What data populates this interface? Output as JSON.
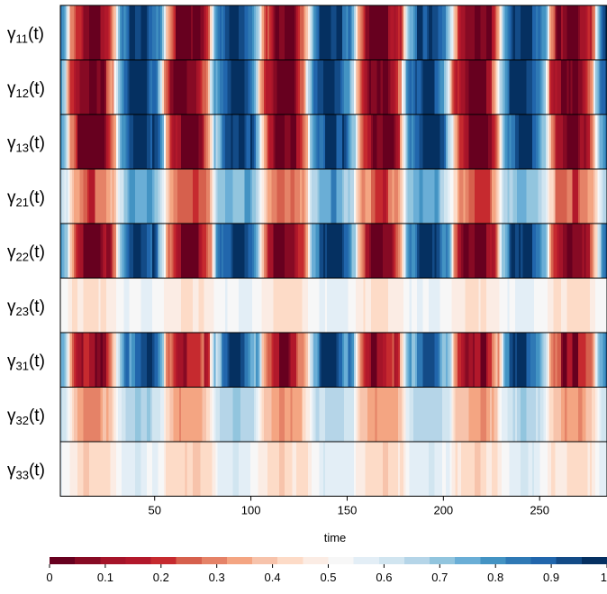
{
  "chart_data": {
    "type": "heatmap",
    "xlabel": "time",
    "xlim": [
      1,
      285
    ],
    "x_ticks": [
      "50",
      "100",
      "150",
      "200",
      "250"
    ],
    "rows": [
      {
        "symbol": "γ",
        "subscript": "11",
        "suffix": "(t)",
        "amplitude": 1.0,
        "phase": 0.0,
        "noise": 0.09
      },
      {
        "symbol": "γ",
        "subscript": "12",
        "suffix": "(t)",
        "amplitude": 1.0,
        "phase": 0.15,
        "noise": 0.07
      },
      {
        "symbol": "γ",
        "subscript": "13",
        "suffix": "(t)",
        "amplitude": 1.0,
        "phase": 0.0,
        "noise": 0.09
      },
      {
        "symbol": "γ",
        "subscript": "21",
        "suffix": "(t)",
        "amplitude": 0.55,
        "phase": 0.0,
        "noise": 0.06
      },
      {
        "symbol": "γ",
        "subscript": "22",
        "suffix": "(t)",
        "amplitude": 1.0,
        "phase": 0.0,
        "noise": 0.08
      },
      {
        "symbol": "γ",
        "subscript": "23",
        "suffix": "(t)",
        "amplitude": 0.12,
        "phase": 0.0,
        "noise": 0.02
      },
      {
        "symbol": "γ",
        "subscript": "31",
        "suffix": "(t)",
        "amplitude": 0.85,
        "phase": 0.0,
        "noise": 0.11
      },
      {
        "symbol": "γ",
        "subscript": "32",
        "suffix": "(t)",
        "amplitude": 0.35,
        "phase": 0.0,
        "noise": 0.03
      },
      {
        "symbol": "γ",
        "subscript": "33",
        "suffix": "(t)",
        "amplitude": 0.15,
        "phase": 0.0,
        "noise": 0.03
      }
    ],
    "signal": {
      "period": 50,
      "offset": 5
    },
    "colorbar": {
      "range": [
        0,
        1
      ],
      "ticks": [
        "0",
        "0.1",
        "0.2",
        "0.3",
        "0.4",
        "0.5",
        "0.6",
        "0.7",
        "0.8",
        "0.9",
        "1"
      ],
      "colors": [
        "#67001f",
        "#870a24",
        "#a51429",
        "#b2182b",
        "#c62a2f",
        "#d6604d",
        "#e58267",
        "#f4a582",
        "#f7c3ab",
        "#fddbc7",
        "#fbece4",
        "#f7f7f7",
        "#e3eef6",
        "#d1e5f0",
        "#b5d5e8",
        "#92c5de",
        "#6aaed6",
        "#4393c3",
        "#2f79b5",
        "#2166ac",
        "#134b87",
        "#053061"
      ]
    }
  }
}
